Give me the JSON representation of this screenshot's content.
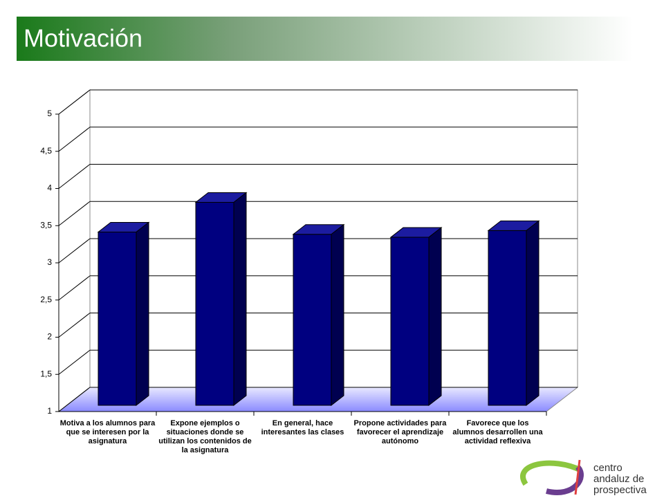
{
  "chart_data": {
    "type": "bar3d",
    "title": "Motivación",
    "categories": [
      "Motiva a los alumnos para que se interesen por la asignatura",
      "Expone ejemplos o situaciones donde se utilizan los contenidos de la asignatura",
      "En general, hace interesantes las clases",
      "Propone actividades para favorecer el aprendizaje autónomo",
      "Favorece que los alumnos desarrollen una actividad reflexiva"
    ],
    "values": [
      3.33,
      3.73,
      3.3,
      3.26,
      3.35
    ],
    "color": "#000080",
    "ylim": [
      1,
      5
    ],
    "yticks": [
      1,
      {
        "value": 1.5,
        "label": "1,5"
      },
      2,
      {
        "value": 2.5,
        "label": "2,5"
      },
      3,
      {
        "value": 3.5,
        "label": "3,5"
      },
      4,
      {
        "value": 4.5,
        "label": "4,5"
      },
      5
    ],
    "grid": true
  },
  "logo": [
    "centro",
    "andaluz de",
    "prospectiva"
  ]
}
